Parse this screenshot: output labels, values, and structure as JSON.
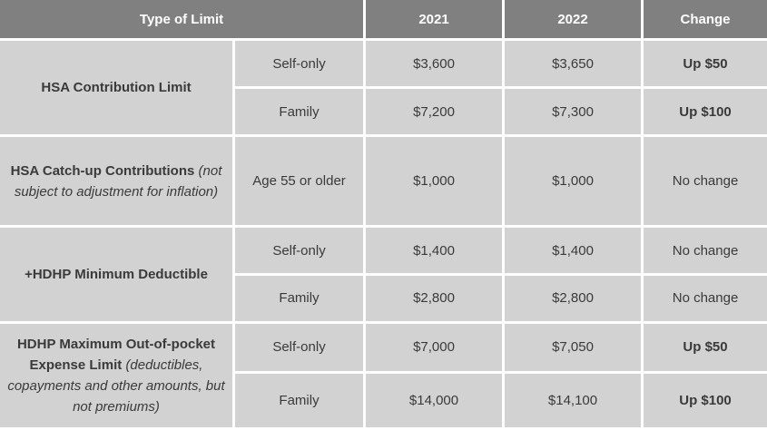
{
  "table": {
    "headers": {
      "type": "Type of Limit",
      "y2021": "2021",
      "y2022": "2022",
      "change": "Change"
    },
    "groups": [
      {
        "label": "HSA Contribution Limit",
        "note": "",
        "rows": [
          {
            "coverage": "Self-only",
            "y2021": "$3,600",
            "y2022": "$3,650",
            "change": "Up $50"
          },
          {
            "coverage": "Family",
            "y2021": "$7,200",
            "y2022": "$7,300",
            "change": "Up $100"
          }
        ]
      },
      {
        "label": "HSA Catch-up Contributions",
        "note": "(not subject to adjustment for inflation)",
        "rows": [
          {
            "coverage": "Age 55 or older",
            "y2021": "$1,000",
            "y2022": "$1,000",
            "change": "No change"
          }
        ]
      },
      {
        "label": "+HDHP Minimum Deductible",
        "note": "",
        "rows": [
          {
            "coverage": "Self-only",
            "y2021": "$1,400",
            "y2022": "$1,400",
            "change": "No change"
          },
          {
            "coverage": "Family",
            "y2021": "$2,800",
            "y2022": "$2,800",
            "change": "No change"
          }
        ]
      },
      {
        "label": "HDHP Maximum Out-of-pocket Expense Limit",
        "note": "(deductibles, copayments and other amounts, but not premiums)",
        "rows": [
          {
            "coverage": "Self-only",
            "y2021": "$7,000",
            "y2022": "$7,050",
            "change": "Up $50"
          },
          {
            "coverage": "Family",
            "y2021": "$14,000",
            "y2022": "$14,100",
            "change": "Up $100"
          }
        ]
      }
    ]
  }
}
